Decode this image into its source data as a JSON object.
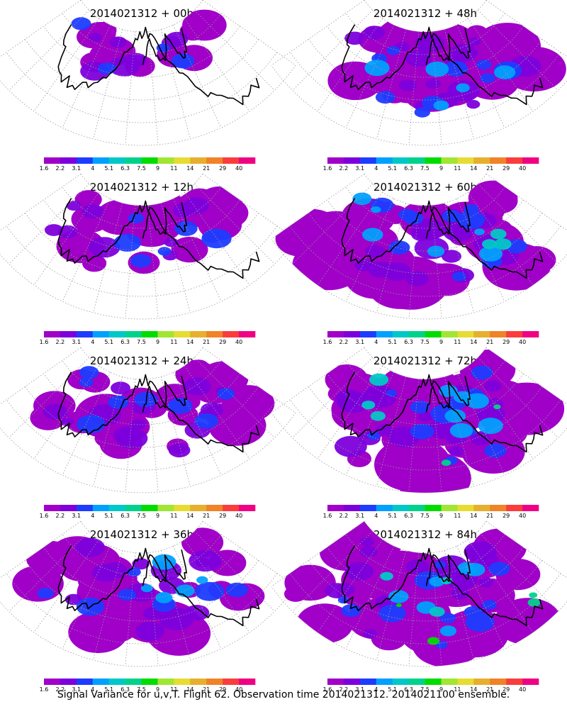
{
  "caption": "Signal Variance for u,v,T. Flight 62. Observation time 2014021312. 2014021100 ensemble.",
  "colorbar": {
    "labels": [
      "1.6",
      "2.2",
      "3.1",
      "4",
      "5.1",
      "6.3",
      "7.5",
      "9",
      "11",
      "14",
      "21",
      "29",
      "40"
    ],
    "colors": [
      "#a000c8",
      "#7d00dc",
      "#1e3cff",
      "#00a0ff",
      "#00c8c8",
      "#00d28c",
      "#00dc00",
      "#a0e632",
      "#e6dc32",
      "#e6af2d",
      "#f08228",
      "#fa3c3c",
      "#f00082"
    ]
  },
  "panels": [
    {
      "title": "2014021312 + 00h",
      "coverage": 0.15,
      "level": 1.0
    },
    {
      "title": "2014021312 + 48h",
      "coverage": 0.7,
      "level": 2.6
    },
    {
      "title": "2014021312 + 12h",
      "coverage": 0.35,
      "level": 1.6
    },
    {
      "title": "2014021312 + 60h",
      "coverage": 0.85,
      "level": 3.4
    },
    {
      "title": "2014021312 + 24h",
      "coverage": 0.55,
      "level": 1.9
    },
    {
      "title": "2014021312 + 72h",
      "coverage": 0.9,
      "level": 4.1
    },
    {
      "title": "2014021312 + 36h",
      "coverage": 0.65,
      "level": 2.3
    },
    {
      "title": "2014021312 + 84h",
      "coverage": 0.95,
      "level": 5.0
    }
  ]
}
